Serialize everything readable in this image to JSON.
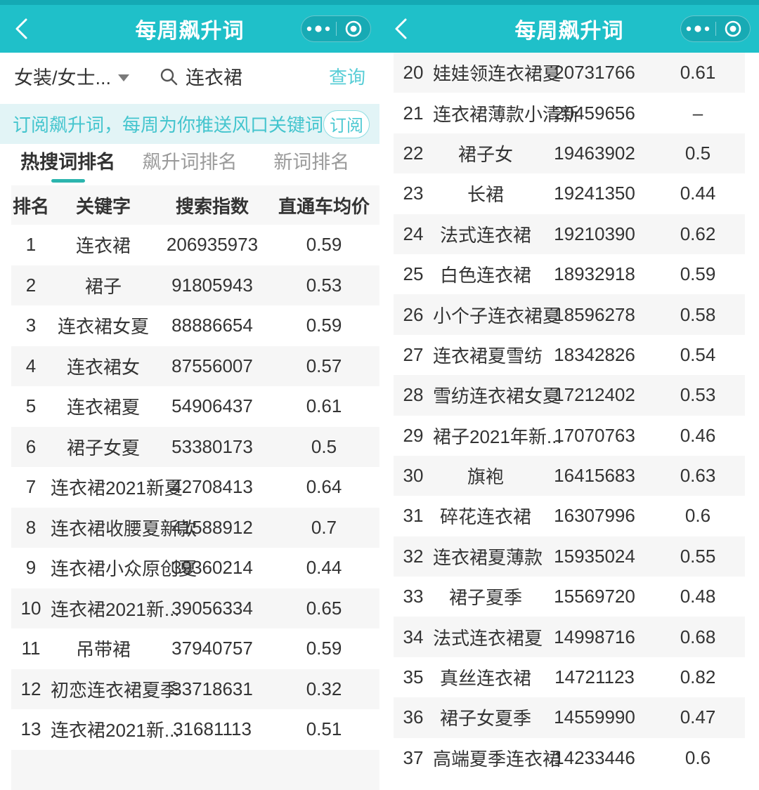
{
  "colors": {
    "appbar": "#1fc0c9",
    "appbar_top_strip": "#14a9b4",
    "capsule": "#17aab4",
    "banner_bg": "#e2f4f6",
    "banner_text": "#44c5ce",
    "tab_underline": "#2cb5ae",
    "row_alt_bg": "#f6f6f6",
    "link_teal": "#57cdd6"
  },
  "header": {
    "title": "每周飙升词"
  },
  "left": {
    "filter": {
      "category_label": "女装/女士...",
      "search_value": "连衣裙",
      "query_label": "查询"
    },
    "banner": {
      "text": "订阅飙升词，每周为你推送风口关键词",
      "subscribe_label": "订阅"
    },
    "tabs": [
      {
        "label": "热搜词排名",
        "active": true
      },
      {
        "label": "飙升词排名",
        "active": false
      },
      {
        "label": "新词排名",
        "active": false
      }
    ],
    "table": {
      "headers": [
        "排名",
        "关键字",
        "搜索指数",
        "直通车均价"
      ],
      "rows": [
        {
          "rank": "1",
          "keyword": "连衣裙",
          "index": "206935973",
          "price": "0.59"
        },
        {
          "rank": "2",
          "keyword": "裙子",
          "index": "91805943",
          "price": "0.53"
        },
        {
          "rank": "3",
          "keyword": "连衣裙女夏",
          "index": "88886654",
          "price": "0.59"
        },
        {
          "rank": "4",
          "keyword": "连衣裙女",
          "index": "87556007",
          "price": "0.57"
        },
        {
          "rank": "5",
          "keyword": "连衣裙夏",
          "index": "54906437",
          "price": "0.61"
        },
        {
          "rank": "6",
          "keyword": "裙子女夏",
          "index": "53380173",
          "price": "0.5"
        },
        {
          "rank": "7",
          "keyword": "连衣裙2021新夏",
          "index": "42708413",
          "price": "0.64"
        },
        {
          "rank": "8",
          "keyword": "连衣裙收腰夏新款",
          "index": "41588912",
          "price": "0.7"
        },
        {
          "rank": "9",
          "keyword": "连衣裙小众原创夏",
          "index": "39360214",
          "price": "0.44"
        },
        {
          "rank": "10",
          "keyword": "连衣裙2021新...",
          "index": "39056334",
          "price": "0.65"
        },
        {
          "rank": "11",
          "keyword": "吊带裙",
          "index": "37940757",
          "price": "0.59"
        },
        {
          "rank": "12",
          "keyword": "初恋连衣裙夏季",
          "index": "33718631",
          "price": "0.32"
        },
        {
          "rank": "13",
          "keyword": "连衣裙2021新...",
          "index": "31681113",
          "price": "0.51"
        }
      ]
    }
  },
  "right": {
    "table": {
      "rows": [
        {
          "rank": "20",
          "keyword": "娃娃领连衣裙夏",
          "index": "20731766",
          "price": "0.61"
        },
        {
          "rank": "21",
          "keyword": "连衣裙薄款小清新",
          "index": "20459656",
          "price": "–"
        },
        {
          "rank": "22",
          "keyword": "裙子女",
          "index": "19463902",
          "price": "0.5"
        },
        {
          "rank": "23",
          "keyword": "长裙",
          "index": "19241350",
          "price": "0.44"
        },
        {
          "rank": "24",
          "keyword": "法式连衣裙",
          "index": "19210390",
          "price": "0.62"
        },
        {
          "rank": "25",
          "keyword": "白色连衣裙",
          "index": "18932918",
          "price": "0.59"
        },
        {
          "rank": "26",
          "keyword": "小个子连衣裙夏",
          "index": "18596278",
          "price": "0.58"
        },
        {
          "rank": "27",
          "keyword": "连衣裙夏雪纺",
          "index": "18342826",
          "price": "0.54"
        },
        {
          "rank": "28",
          "keyword": "雪纺连衣裙女夏",
          "index": "17212402",
          "price": "0.53"
        },
        {
          "rank": "29",
          "keyword": "裙子2021年新...",
          "index": "17070763",
          "price": "0.46"
        },
        {
          "rank": "30",
          "keyword": "旗袍",
          "index": "16415683",
          "price": "0.63"
        },
        {
          "rank": "31",
          "keyword": "碎花连衣裙",
          "index": "16307996",
          "price": "0.6"
        },
        {
          "rank": "32",
          "keyword": "连衣裙夏薄款",
          "index": "15935024",
          "price": "0.55"
        },
        {
          "rank": "33",
          "keyword": "裙子夏季",
          "index": "15569720",
          "price": "0.48"
        },
        {
          "rank": "34",
          "keyword": "法式连衣裙夏",
          "index": "14998716",
          "price": "0.68"
        },
        {
          "rank": "35",
          "keyword": "真丝连衣裙",
          "index": "14721123",
          "price": "0.82"
        },
        {
          "rank": "36",
          "keyword": "裙子女夏季",
          "index": "14559990",
          "price": "0.47"
        },
        {
          "rank": "37",
          "keyword": "高端夏季连衣裙",
          "index": "14233446",
          "price": "0.6"
        }
      ]
    }
  }
}
